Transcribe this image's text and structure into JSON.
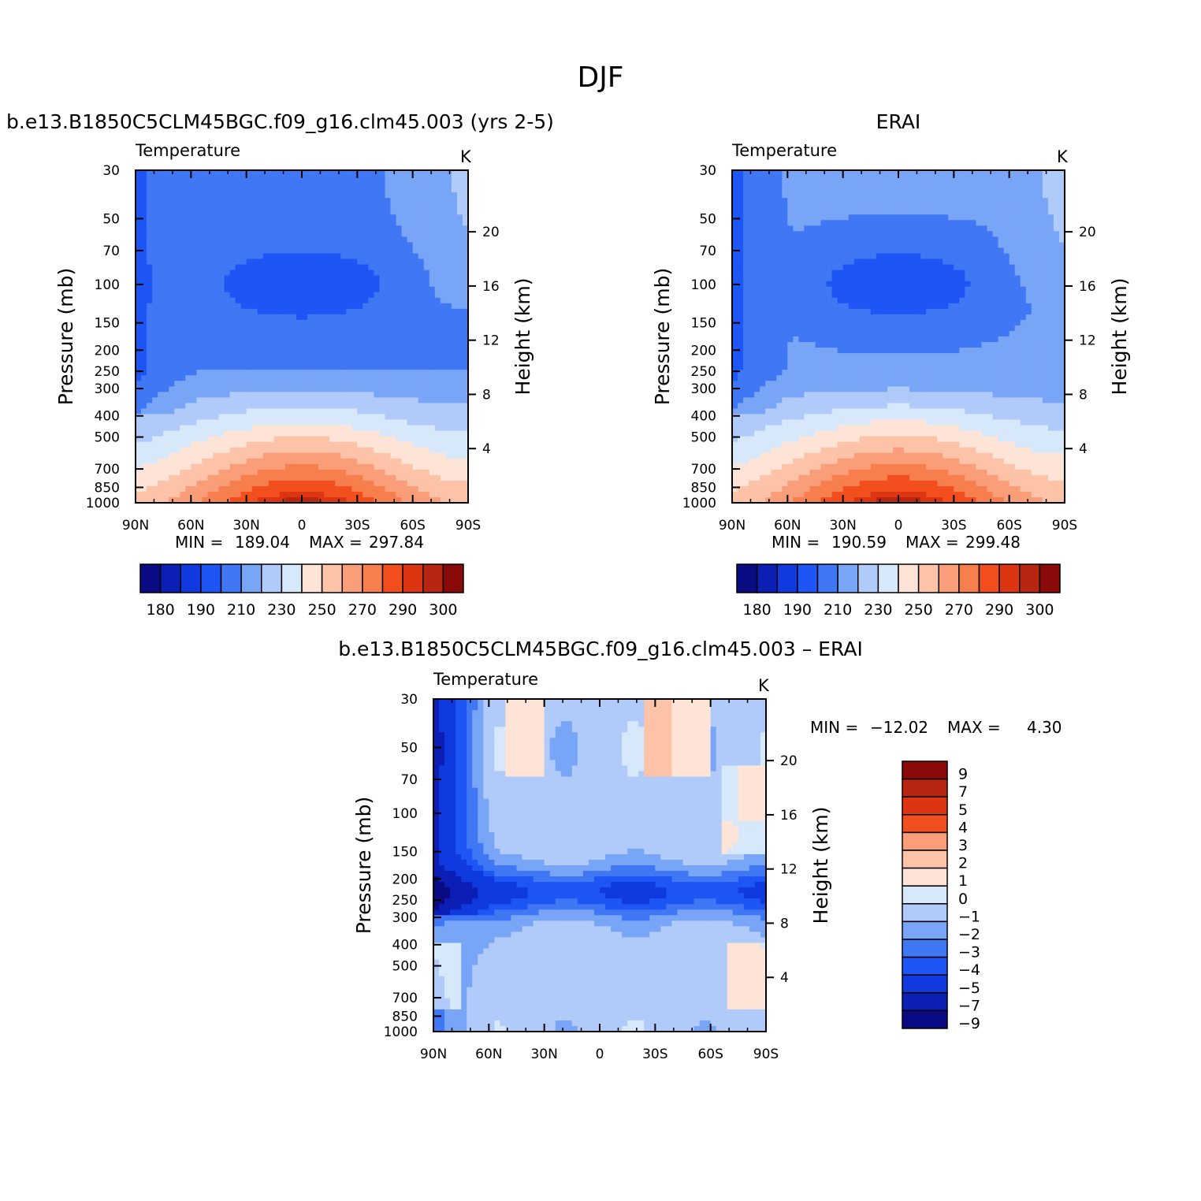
{
  "figure_title": "DJF",
  "chart_data": [
    {
      "type": "heatmap",
      "panel_title": "b.e13.B1850C5CLM45BGC.f09_g16.clm45.003 (yrs 2-5)",
      "variable": "Temperature",
      "units": "K",
      "ylabel": "Pressure (mb)",
      "y2label": "Height (km)",
      "x_ticks": [
        "90N",
        "60N",
        "30N",
        "0",
        "30S",
        "60S",
        "90S"
      ],
      "y_ticks": [
        "30",
        "50",
        "70",
        "100",
        "150",
        "200",
        "250",
        "300",
        "400",
        "500",
        "700",
        "850",
        "1000"
      ],
      "y_values_mb": [
        30,
        50,
        70,
        100,
        150,
        200,
        250,
        300,
        400,
        500,
        700,
        850,
        1000
      ],
      "y2_ticks": [
        "20",
        "16",
        "12",
        "8",
        "4"
      ],
      "y2_values_km": [
        20,
        16,
        12,
        8,
        4
      ],
      "stats": {
        "min_label": "MIN =",
        "min": "189.04",
        "max_label": "MAX =",
        "max": "297.84"
      },
      "colorbar": {
        "labels": [
          "180",
          "190",
          "210",
          "230",
          "250",
          "270",
          "290",
          "300"
        ],
        "colors": [
          "#0a0a82",
          "#0c1fb5",
          "#0e3ae0",
          "#1d56f5",
          "#3f77f4",
          "#79a5f7",
          "#b0cbfa",
          "#d8e8fb",
          "#fde4d6",
          "#fcc3a8",
          "#fa9e7a",
          "#f77f4e",
          "#f24e1e",
          "#dd3412",
          "#b82510",
          "#8a0a0a"
        ]
      }
    },
    {
      "type": "heatmap",
      "panel_title": "ERAI",
      "variable": "Temperature",
      "units": "K",
      "ylabel": "Pressure (mb)",
      "y2label": "Height (km)",
      "x_ticks": [
        "90N",
        "60N",
        "30N",
        "0",
        "30S",
        "60S",
        "90S"
      ],
      "y_ticks": [
        "30",
        "50",
        "70",
        "100",
        "150",
        "200",
        "250",
        "300",
        "400",
        "500",
        "700",
        "850",
        "1000"
      ],
      "y2_ticks": [
        "20",
        "16",
        "12",
        "8",
        "4"
      ],
      "stats": {
        "min_label": "MIN =",
        "min": "190.59",
        "max_label": "MAX =",
        "max": "299.48"
      },
      "colorbar": {
        "labels": [
          "180",
          "190",
          "210",
          "230",
          "250",
          "270",
          "290",
          "300"
        ]
      }
    },
    {
      "type": "heatmap",
      "panel_title": "b.e13.B1850C5CLM45BGC.f09_g16.clm45.003 – ERAI",
      "variable": "Temperature",
      "units": "K",
      "ylabel": "Pressure (mb)",
      "y2label": "Height (km)",
      "x_ticks": [
        "90N",
        "60N",
        "30N",
        "0",
        "30S",
        "60S",
        "90S"
      ],
      "y_ticks": [
        "30",
        "50",
        "70",
        "100",
        "150",
        "200",
        "250",
        "300",
        "400",
        "500",
        "700",
        "850",
        "1000"
      ],
      "y2_ticks": [
        "20",
        "16",
        "12",
        "8",
        "4"
      ],
      "stats": {
        "min_label": "MIN =",
        "min": "−12.02",
        "max_label": "MAX =",
        "max": "4.30"
      },
      "colorbar": {
        "labels": [
          "9",
          "7",
          "5",
          "4",
          "3",
          "2",
          "1",
          "0",
          "−1",
          "−2",
          "−3",
          "−4",
          "−5",
          "−7",
          "−9"
        ],
        "colors": [
          "#8a0a0a",
          "#b82510",
          "#dd3412",
          "#f24e1e",
          "#fa9e7a",
          "#fcc3a8",
          "#fde4d6",
          "#d8e8fb",
          "#b0cbfa",
          "#79a5f7",
          "#3f77f4",
          "#1d56f5",
          "#0e3ae0",
          "#0c1fb5",
          "#0a0a82"
        ]
      }
    }
  ]
}
